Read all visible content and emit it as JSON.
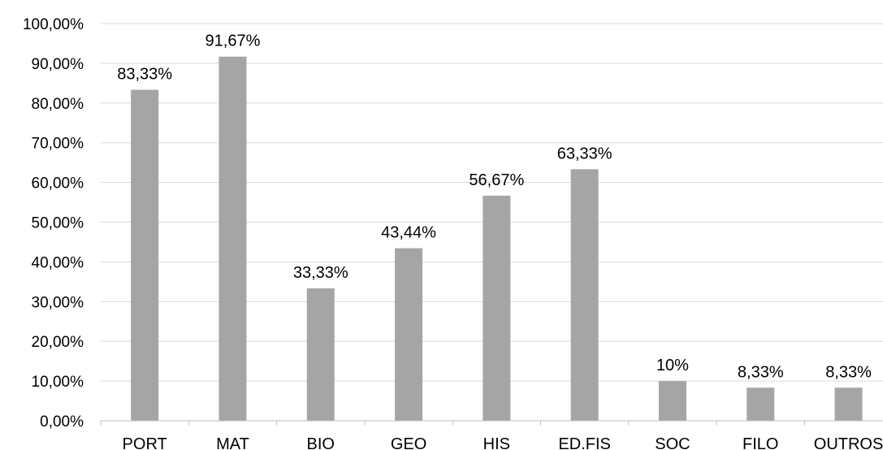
{
  "chart_data": {
    "type": "bar",
    "title": "",
    "xlabel": "",
    "ylabel": "",
    "categories": [
      "PORT",
      "MAT",
      "BIO",
      "GEO",
      "HIS",
      "ED.FIS",
      "SOC",
      "FILO",
      "OUTROS"
    ],
    "values": [
      83.33,
      91.67,
      33.33,
      43.44,
      56.67,
      63.33,
      10,
      8.33,
      8.33
    ],
    "data_labels": [
      "83,33%",
      "91,67%",
      "33,33%",
      "43,44%",
      "56,67%",
      "63,33%",
      "10%",
      "8,33%",
      "8,33%"
    ],
    "ylim": [
      0,
      100
    ],
    "yticks": [
      0,
      10,
      20,
      30,
      40,
      50,
      60,
      70,
      80,
      90,
      100
    ],
    "ytick_labels": [
      "0,00%",
      "10,00%",
      "20,00%",
      "30,00%",
      "40,00%",
      "50,00%",
      "60,00%",
      "70,00%",
      "80,00%",
      "90,00%",
      "100,00%"
    ],
    "grid": true,
    "legend": "none",
    "colors": {
      "bar": "#a5a5a5",
      "grid": "#d9d9d9",
      "axis": "#bfbfbf"
    }
  }
}
